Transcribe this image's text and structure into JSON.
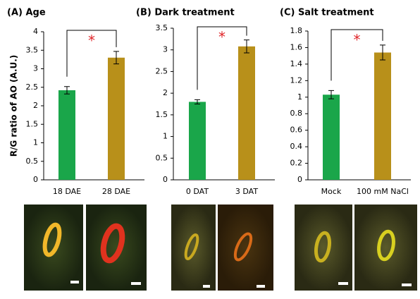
{
  "chart_data": [
    {
      "type": "bar",
      "title": "(A) Age",
      "ylabel": "R/G ratio of AO (A.U.)",
      "categories": [
        "18 DAE",
        "28 DAE"
      ],
      "values": [
        2.42,
        3.3
      ],
      "errors": [
        0.1,
        0.17
      ],
      "colors": [
        "#1aa64a",
        "#b8901a"
      ],
      "ylim": [
        0,
        4
      ],
      "yticks": [
        0,
        0.5,
        1,
        1.5,
        2,
        2.5,
        3,
        3.5,
        4
      ],
      "annotation": "*"
    },
    {
      "type": "bar",
      "title": "(B) Dark treatment",
      "categories": [
        "0 DAT",
        "3 DAT"
      ],
      "values": [
        1.8,
        3.08
      ],
      "errors": [
        0.05,
        0.15
      ],
      "colors": [
        "#1aa64a",
        "#b8901a"
      ],
      "ylim": [
        0,
        3.5
      ],
      "yticks": [
        0,
        0.5,
        1,
        1.5,
        2,
        2.5,
        3,
        3.5
      ],
      "annotation": "*"
    },
    {
      "type": "bar",
      "title": "(C) Salt treatment",
      "categories": [
        "Mock",
        "100 mM NaCl"
      ],
      "values": [
        1.03,
        1.54
      ],
      "errors": [
        0.05,
        0.09
      ],
      "colors": [
        "#1aa64a",
        "#b8901a"
      ],
      "ylim": [
        0,
        1.8
      ],
      "yticks": [
        0,
        0.2,
        0.4,
        0.6,
        0.8,
        1,
        1.2,
        1.4,
        1.6,
        1.8
      ],
      "annotation": "*"
    }
  ]
}
